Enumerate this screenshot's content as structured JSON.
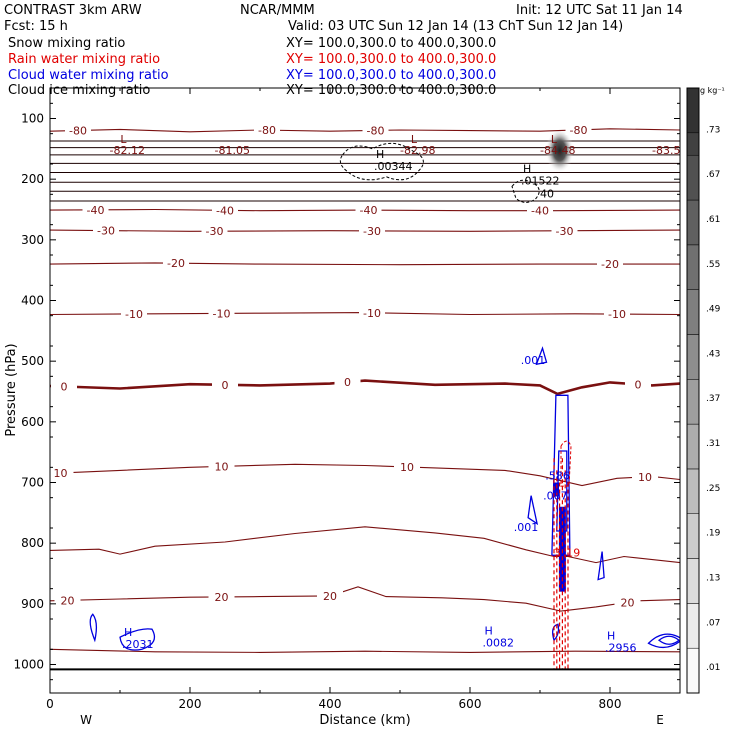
{
  "header": {
    "left_title": "CONTRAST  3km ARW",
    "org": "NCAR/MMM",
    "init": "Init: 12 UTC Sat 11 Jan 14",
    "fcst": "Fcst:    15 h",
    "valid": "Valid: 03 UTC Sun 12 Jan 14 (13 ChT Sun 12 Jan 14)"
  },
  "fields": [
    {
      "name": "Snow mixing ratio",
      "xy": "XY= 100.0,300.0 to 400.0,300.0",
      "color": "#000000"
    },
    {
      "name": "Rain water mixing ratio",
      "xy": "XY= 100.0,300.0 to 400.0,300.0",
      "color": "#e00000"
    },
    {
      "name": "Cloud water mixing ratio",
      "xy": "XY= 100.0,300.0 to 400.0,300.0",
      "color": "#0000e0"
    },
    {
      "name": "Cloud ice mixing ratio",
      "xy": "XY= 100.0,300.0 to 400.0,300.0",
      "color": "#000000"
    }
  ],
  "colors": {
    "temperature": "#7a1010",
    "rain": "#e00000",
    "cloud_water": "#0000e0",
    "snow": "#000000"
  },
  "chart_data": {
    "type": "cross-section",
    "xlabel": "Distance (km)",
    "ylabel": "Pressure (hPa)",
    "xlim": [
      0,
      900
    ],
    "ylim": [
      1045,
      50
    ],
    "x_ticks": [
      0,
      200,
      400,
      600,
      800
    ],
    "y_ticks": [
      100,
      200,
      300,
      400,
      500,
      600,
      700,
      800,
      900,
      1000
    ],
    "west_label": "W",
    "east_label": "E",
    "surface_p": 1008,
    "colorbar": {
      "unit": "g kg⁻¹",
      "labels": [
        ".01",
        ".07",
        ".13",
        ".19",
        ".25",
        ".31",
        ".37",
        ".43",
        ".49",
        ".55",
        ".61",
        ".67",
        ".73"
      ]
    },
    "isotherms": [
      {
        "label": "-80",
        "pts": [
          [
            0,
            121
          ],
          [
            100,
            118
          ],
          [
            200,
            122
          ],
          [
            300,
            119
          ],
          [
            400,
            121
          ],
          [
            500,
            119
          ],
          [
            600,
            120
          ],
          [
            700,
            121
          ],
          [
            800,
            117
          ],
          [
            900,
            119
          ]
        ],
        "labels": [
          [
            40,
            "-80"
          ],
          [
            310,
            "-80"
          ],
          [
            465,
            "-80"
          ],
          [
            755,
            "-80"
          ]
        ]
      },
      {
        "label": "-40",
        "pts": [
          [
            0,
            251
          ],
          [
            150,
            250
          ],
          [
            300,
            252
          ],
          [
            450,
            251
          ],
          [
            600,
            252
          ],
          [
            720,
            252
          ],
          [
            900,
            251
          ]
        ],
        "labels": [
          [
            65,
            "-40"
          ],
          [
            250,
            "-40"
          ],
          [
            455,
            "-40"
          ],
          [
            700,
            "-40"
          ]
        ]
      },
      {
        "label": "-30",
        "pts": [
          [
            0,
            284
          ],
          [
            200,
            286
          ],
          [
            400,
            285
          ],
          [
            600,
            286
          ],
          [
            750,
            285
          ],
          [
            900,
            284
          ]
        ],
        "labels": [
          [
            80,
            "-30"
          ],
          [
            235,
            "-30"
          ],
          [
            460,
            "-30"
          ],
          [
            735,
            "-30"
          ]
        ]
      },
      {
        "label": "-20",
        "pts": [
          [
            0,
            340
          ],
          [
            150,
            338
          ],
          [
            300,
            340
          ],
          [
            500,
            341
          ],
          [
            700,
            340
          ],
          [
            900,
            340
          ]
        ],
        "labels": [
          [
            180,
            "-20"
          ],
          [
            800,
            "-20"
          ]
        ]
      },
      {
        "label": "-10",
        "pts": [
          [
            0,
            423
          ],
          [
            150,
            422
          ],
          [
            300,
            421
          ],
          [
            450,
            420
          ],
          [
            600,
            423
          ],
          [
            750,
            422
          ],
          [
            900,
            423
          ]
        ],
        "labels": [
          [
            120,
            "-10"
          ],
          [
            245,
            "-10"
          ],
          [
            460,
            "-10"
          ],
          [
            810,
            "-10"
          ]
        ]
      },
      {
        "label": "0",
        "pts": [
          [
            0,
            541
          ],
          [
            100,
            545
          ],
          [
            200,
            538
          ],
          [
            300,
            540
          ],
          [
            400,
            537
          ],
          [
            450,
            532
          ],
          [
            550,
            539
          ],
          [
            650,
            537
          ],
          [
            700,
            540
          ],
          [
            725,
            554
          ],
          [
            760,
            543
          ],
          [
            800,
            535
          ],
          [
            860,
            540
          ],
          [
            900,
            537
          ]
        ],
        "labels": [
          [
            20,
            "0"
          ],
          [
            250,
            "0"
          ],
          [
            425,
            "0"
          ],
          [
            840,
            "0"
          ]
        ],
        "bold": true
      },
      {
        "label": "10",
        "pts": [
          [
            0,
            685
          ],
          [
            100,
            680
          ],
          [
            200,
            675
          ],
          [
            350,
            670
          ],
          [
            450,
            672
          ],
          [
            550,
            676
          ],
          [
            650,
            680
          ],
          [
            700,
            689
          ],
          [
            760,
            705
          ],
          [
            810,
            693
          ],
          [
            860,
            690
          ],
          [
            900,
            695
          ]
        ],
        "labels": [
          [
            15,
            "10"
          ],
          [
            245,
            "10"
          ],
          [
            510,
            "10"
          ],
          [
            850,
            "10"
          ]
        ]
      },
      {
        "label": "",
        "pts": [
          [
            0,
            812
          ],
          [
            70,
            810
          ],
          [
            100,
            818
          ],
          [
            150,
            805
          ],
          [
            250,
            798
          ],
          [
            350,
            784
          ],
          [
            450,
            773
          ],
          [
            550,
            783
          ],
          [
            620,
            792
          ],
          [
            680,
            811
          ],
          [
            720,
            822
          ],
          [
            740,
            822
          ],
          [
            780,
            832
          ],
          [
            820,
            822
          ],
          [
            900,
            832
          ]
        ],
        "labels": []
      },
      {
        "label": "20",
        "pts": [
          [
            0,
            895
          ],
          [
            100,
            892
          ],
          [
            200,
            889
          ],
          [
            300,
            888
          ],
          [
            400,
            887
          ],
          [
            440,
            872
          ],
          [
            480,
            888
          ],
          [
            560,
            890
          ],
          [
            620,
            893
          ],
          [
            680,
            899
          ],
          [
            730,
            912
          ],
          [
            780,
            905
          ],
          [
            840,
            895
          ],
          [
            900,
            893
          ]
        ],
        "labels": [
          [
            25,
            "20"
          ],
          [
            245,
            "20"
          ],
          [
            400,
            "20"
          ],
          [
            825,
            "20"
          ]
        ]
      },
      {
        "label": "",
        "pts": [
          [
            0,
            975
          ],
          [
            150,
            979
          ],
          [
            300,
            980
          ],
          [
            450,
            978
          ],
          [
            600,
            980
          ],
          [
            750,
            978
          ],
          [
            900,
            979
          ]
        ],
        "labels": []
      }
    ],
    "tropopause_layers": [
      137,
      148,
      160,
      174,
      189,
      205,
      220,
      236
    ],
    "temp_extrema": [
      {
        "x": 105,
        "p": 88,
        "mark": "L",
        "value": "-82.12"
      },
      {
        "x": 255,
        "p": 88,
        "mark": "",
        "value": "-81.05"
      },
      {
        "x": 520,
        "p": 88,
        "mark": "L",
        "value": "-82.98"
      },
      {
        "x": 720,
        "p": 88,
        "mark": "L",
        "value": "-84.48"
      },
      {
        "x": 880,
        "p": 88,
        "mark": "",
        "value": "-83.5"
      }
    ],
    "highs": [
      {
        "x": 480,
        "p": 172,
        "mark": "H",
        "value": ".00344",
        "color": "#000000"
      },
      {
        "x": 690,
        "p": 196,
        "mark": "H",
        "value": ".01522",
        "color": "#000000"
      },
      {
        "x": 120,
        "p": 960,
        "mark": "H",
        "value": ".2031",
        "color": "#0000e0"
      },
      {
        "x": 635,
        "p": 957,
        "mark": "H",
        "value": ".0082",
        "color": "#0000e0"
      },
      {
        "x": 810,
        "p": 965,
        "mark": "H",
        "value": ".2956",
        "color": "#0000e0"
      }
    ],
    "contour_labels": [
      {
        "x": 690,
        "p": 505,
        "text": ".001",
        "color": "#0000e0"
      },
      {
        "x": 725,
        "p": 695,
        "text": ".586",
        "color": "#0000e0"
      },
      {
        "x": 722,
        "p": 728,
        "text": ".007",
        "color": "#0000e0"
      },
      {
        "x": 680,
        "p": 780,
        "text": ".001",
        "color": "#0000e0"
      },
      {
        "x": 722,
        "p": 822,
        "text": ".3",
        "color": "#e00000"
      },
      {
        "x": 745,
        "p": 822,
        "text": ".19",
        "color": "#e00000"
      },
      {
        "x": 710,
        "p": 230,
        "text": "40",
        "color": "#000000"
      }
    ]
  }
}
